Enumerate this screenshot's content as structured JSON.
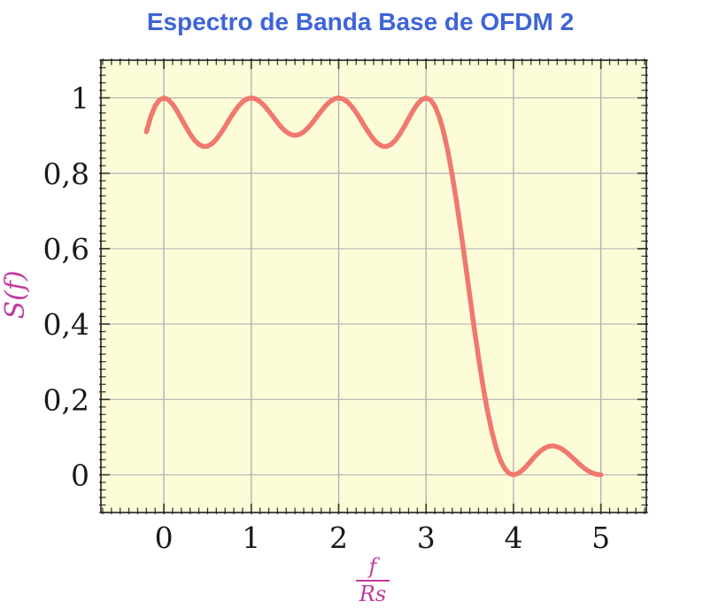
{
  "chart": {
    "title": "Espectro de Banda Base de OFDM 2",
    "ylabel": "S(f)",
    "xlabel_numerator": "f",
    "xlabel_denominator": "Rs"
  },
  "colors": {
    "title": "#3E64D7",
    "axis_label": "#C13A9E",
    "curve": "#F0786E",
    "plot_bg": "#FDFCD9",
    "grid": "#B3B3B3",
    "frame": "#1F1F1F",
    "tick": "#3C3C30",
    "tick_label": "#1A1A1A",
    "page_bg": "#FFFFFF"
  },
  "chart_data": {
    "type": "line",
    "title": "Espectro de Banda Base de OFDM 2",
    "xlabel": "f/Rs",
    "ylabel": "S(f)",
    "xlim": [
      -0.72,
      5.52
    ],
    "ylim": [
      -0.1,
      1.1
    ],
    "grid": true,
    "legend": false,
    "x_ticks": {
      "values": [
        0,
        1,
        2,
        3,
        4,
        5
      ],
      "labels": [
        "0",
        "1",
        "2",
        "3",
        "4",
        "5"
      ]
    },
    "y_ticks": {
      "values": [
        0,
        0.2,
        0.4,
        0.6,
        0.8,
        1
      ],
      "labels": [
        "0",
        "0,2",
        "0,4",
        "0,6",
        "0,8",
        "1"
      ]
    },
    "x_minor_step": 0.1,
    "y_minor_step": 0.02,
    "series": [
      {
        "name": "S(f)",
        "x_start": -0.2,
        "x_step": 0.05,
        "y": [
          0.9101,
          0.9505,
          0.9787,
          0.9947,
          1.0,
          0.9953,
          0.9833,
          0.9657,
          0.9451,
          0.9239,
          0.9042,
          0.888,
          0.8767,
          0.8712,
          0.8718,
          0.8783,
          0.89,
          0.9057,
          0.9239,
          0.9431,
          0.9613,
          0.9774,
          0.9896,
          0.9972,
          1.0,
          0.9973,
          0.9901,
          0.979,
          0.9649,
          0.9496,
          0.9344,
          0.9207,
          0.9099,
          0.903,
          0.9006,
          0.903,
          0.9099,
          0.9207,
          0.9344,
          0.9496,
          0.9649,
          0.979,
          0.9901,
          0.9973,
          1.0,
          0.9972,
          0.9896,
          0.9774,
          0.9613,
          0.9431,
          0.9239,
          0.9057,
          0.89,
          0.8783,
          0.8718,
          0.8712,
          0.8767,
          0.888,
          0.9042,
          0.9239,
          0.9451,
          0.9657,
          0.9833,
          0.9953,
          1.0,
          0.9947,
          0.9787,
          0.9505,
          0.9101,
          0.8578,
          0.7947,
          0.7225,
          0.6434,
          0.5599,
          0.4748,
          0.3909,
          0.311,
          0.2374,
          0.1722,
          0.1169,
          0.0724,
          0.039,
          0.0164,
          0.0038,
          0.0,
          0.0033,
          0.0118,
          0.0236,
          0.0369,
          0.05,
          0.0615,
          0.0701,
          0.0753,
          0.0768,
          0.0745,
          0.069,
          0.0608,
          0.0508,
          0.0399,
          0.0291,
          0.0192,
          0.011,
          0.0049,
          0.0012,
          0.0
        ]
      }
    ]
  }
}
